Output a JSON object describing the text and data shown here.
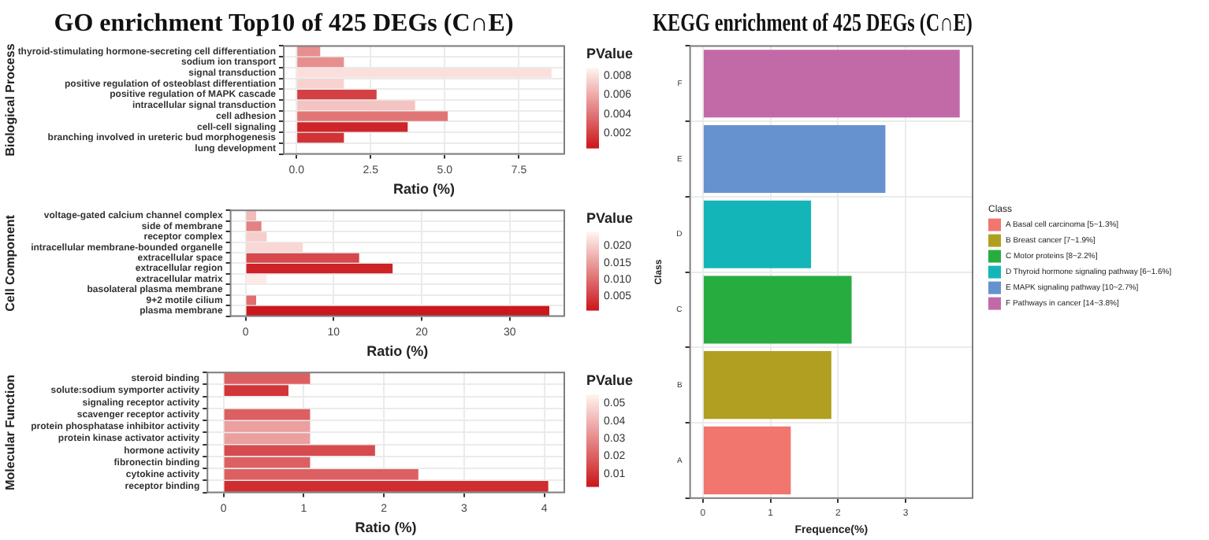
{
  "chart_data": [
    {
      "type": "bar",
      "orientation": "horizontal",
      "title": "GO enrichment Top10 of 425 DEGs (C∩E)",
      "ylabel": "Biological Process",
      "xlabel": "Ratio (%)",
      "clabel": "PValue",
      "categories": [
        "thyroid-stimulating hormone-secreting cell differentiation",
        "sodium ion transport",
        "signal transduction",
        "positive regulation of osteoblast differentiation",
        "positive regulation of MAPK cascade",
        "intracellular signal transduction",
        "cell adhesion",
        "cell-cell signaling",
        "branching involved in ureteric bud morphogenesis",
        "lung development"
      ],
      "values": [
        0.8,
        1.6,
        8.6,
        1.6,
        2.7,
        4.0,
        5.1,
        3.75,
        1.6,
        null
      ],
      "cvalues": [
        0.005,
        0.005,
        0.008,
        0.0075,
        0.002,
        0.007,
        0.004,
        0.001,
        0.0015,
        null
      ],
      "clim": [
        0.0005,
        0.0088
      ],
      "cticks": [
        0.002,
        0.004,
        0.006,
        0.008
      ],
      "xlim": [
        -0.43,
        9.03
      ],
      "xticks": [
        {
          "value": 0,
          "label": "0.0"
        },
        2.5,
        {
          "value": 5,
          "label": "5.0"
        },
        7.5
      ],
      "grid": true
    },
    {
      "type": "bar",
      "orientation": "horizontal",
      "ylabel": "Cell Component",
      "xlabel": "Ratio (%)",
      "clabel": "PValue",
      "categories": [
        "voltage-gated calcium channel complex",
        "side of membrane",
        "receptor complex",
        "intracellular membrane-bounded organelle",
        "extracellular space",
        "extracellular region",
        "extracellular matrix",
        "basolateral plasma membrane",
        "9+2 motile cilium",
        "plasma membrane"
      ],
      "values": [
        1.2,
        1.8,
        2.4,
        6.5,
        12.9,
        16.7,
        2.4,
        null,
        1.2,
        34.5
      ],
      "cvalues": [
        0.018,
        0.012,
        0.02,
        0.021,
        0.006,
        0.002,
        0.023,
        null,
        0.01,
        0.001
      ],
      "clim": [
        0.001,
        0.024
      ],
      "cticks": [
        0.005,
        {
          "value": 0.01,
          "label": "0.010"
        },
        0.015,
        {
          "value": 0.02,
          "label": "0.020"
        }
      ],
      "xlim": [
        -1.7,
        36.2
      ],
      "xticks": [
        0,
        10,
        20,
        30
      ],
      "grid": true
    },
    {
      "type": "bar",
      "orientation": "horizontal",
      "ylabel": "Molecular Function",
      "xlabel": "Ratio (%)",
      "clabel": "PValue",
      "categories": [
        "steroid binding",
        "solute:sodium symporter activity",
        "signaling receptor activity",
        "scavenger receptor activity",
        "protein phosphatase inhibitor activity",
        "protein kinase activator activity",
        "hormone activity",
        "fibronectin binding",
        "cytokine activity",
        "receptor binding"
      ],
      "values": [
        1.08,
        0.81,
        null,
        1.08,
        1.08,
        1.08,
        1.89,
        1.08,
        2.43,
        4.05
      ],
      "cvalues": [
        0.02,
        0.01,
        null,
        0.02,
        0.035,
        0.035,
        0.015,
        0.02,
        0.02,
        0.008
      ],
      "clim": [
        0.003,
        0.055
      ],
      "cticks": [
        0.01,
        0.02,
        0.03,
        0.04,
        0.05
      ],
      "xlim": [
        -0.2,
        4.25
      ],
      "xticks": [
        0,
        1,
        2,
        3,
        4
      ],
      "grid": true
    },
    {
      "type": "bar",
      "orientation": "horizontal",
      "title": "KEGG enrichment of 425 DEGs (C∩E)",
      "ylabel": "Class",
      "xlabel": "Frequence(%)",
      "legend_title": "Class",
      "legend": "right",
      "categories": [
        "F",
        "E",
        "D",
        "C",
        "B",
        "A"
      ],
      "series": [
        {
          "name": "F Pathways in cancer [14~3.8%]",
          "color": "#c26aa8",
          "values": [
            3.8,
            null,
            null,
            null,
            null,
            null
          ]
        },
        {
          "name": "E MAPK signaling pathway [10~2.7%]",
          "color": "#6692cf",
          "values": [
            null,
            2.7,
            null,
            null,
            null,
            null
          ]
        },
        {
          "name": "D Thyroid hormone signaling pathway [6~1.6%]",
          "color": "#14b5b8",
          "values": [
            null,
            null,
            1.6,
            null,
            null,
            null
          ]
        },
        {
          "name": "C Motor proteins [8~2.2%]",
          "color": "#27ad3f",
          "values": [
            null,
            null,
            null,
            2.2,
            null,
            null
          ]
        },
        {
          "name": "B Breast cancer [7~1.9%]",
          "color": "#b09f20",
          "values": [
            null,
            null,
            null,
            null,
            1.9,
            null
          ]
        },
        {
          "name": "A Basal cell carcinoma [5~1.3%]",
          "color": "#f0766e",
          "values": [
            null,
            null,
            null,
            null,
            null,
            1.3
          ]
        }
      ],
      "xlim": [
        -0.19,
        3.99
      ],
      "xticks": [
        0,
        1,
        2,
        3
      ],
      "grid": true
    }
  ]
}
